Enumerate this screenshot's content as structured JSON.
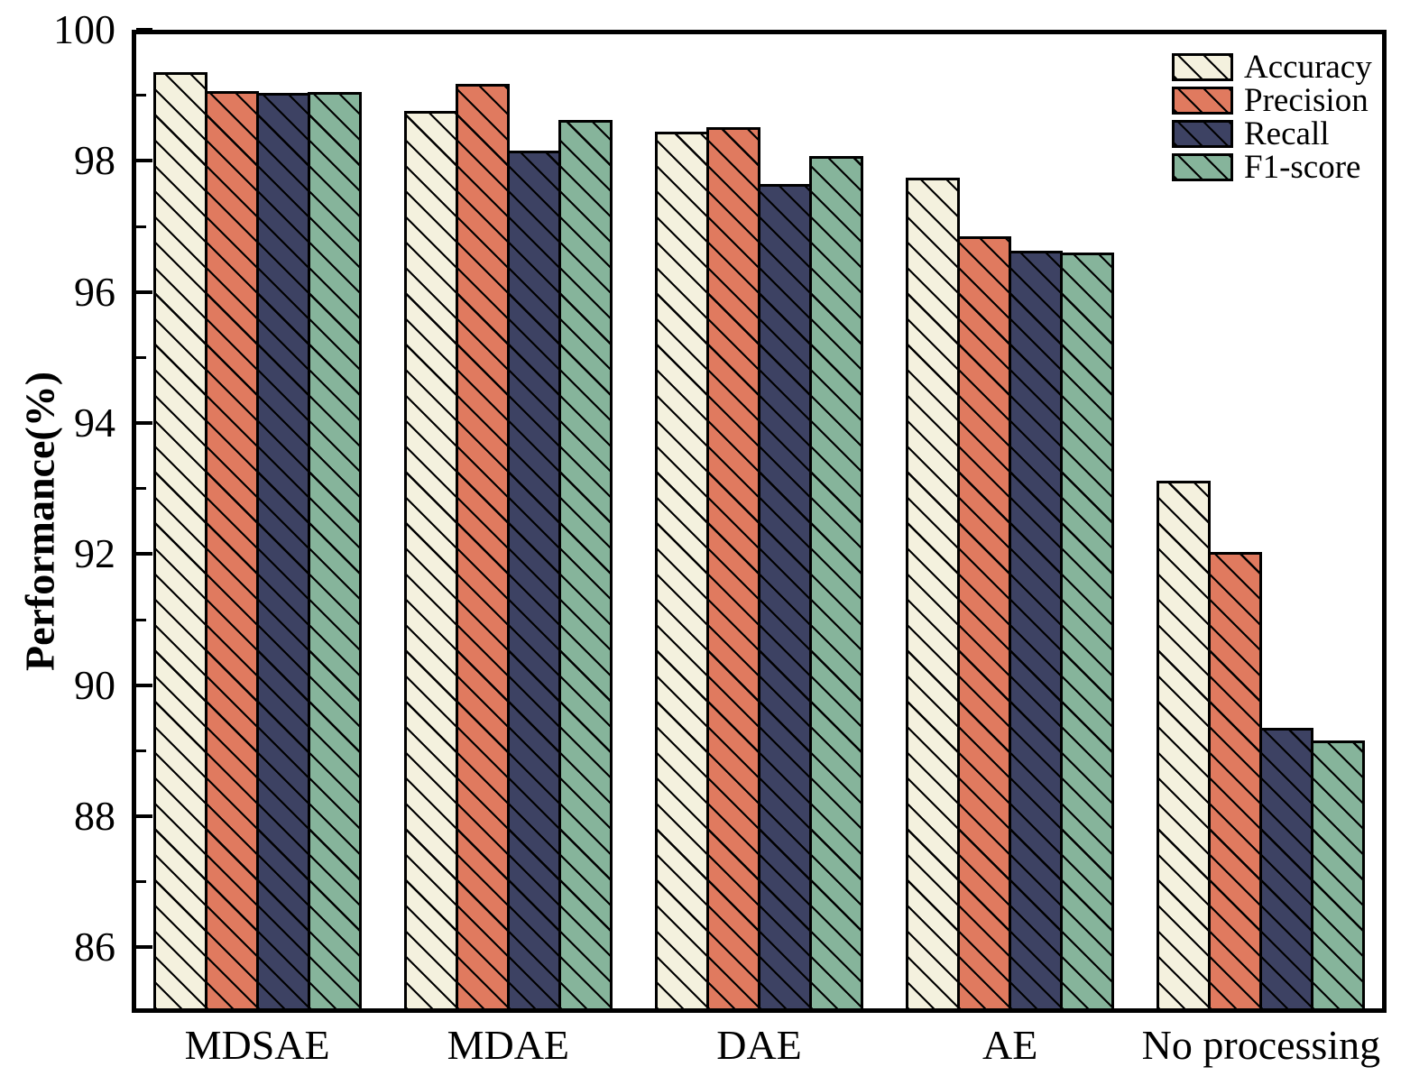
{
  "figure": {
    "background": "#ffffff"
  },
  "chart_data": {
    "type": "bar",
    "title": "",
    "xlabel": "",
    "ylabel": "Performance(%)",
    "categories": [
      "MDSAE",
      "MDAE",
      "DAE",
      "AE",
      "No processing"
    ],
    "series": [
      {
        "name": "Accuracy",
        "color": "#f4f1de",
        "values": [
          99.35,
          98.76,
          98.45,
          97.75,
          93.12
        ]
      },
      {
        "name": "Precision",
        "color": "#e07a5f",
        "values": [
          99.06,
          99.17,
          98.51,
          96.85,
          92.03
        ]
      },
      {
        "name": "Recall",
        "color": "#3d4263",
        "values": [
          99.04,
          98.15,
          97.65,
          96.63,
          89.35
        ]
      },
      {
        "name": "F1-score",
        "color": "#86b49b",
        "values": [
          99.05,
          98.62,
          98.07,
          96.6,
          89.15
        ]
      }
    ],
    "ylim": [
      85,
      100
    ],
    "yticks_major": [
      86,
      88,
      90,
      92,
      94,
      96,
      98,
      100
    ],
    "yticks_minor": [
      87,
      89,
      91,
      93,
      95,
      97,
      99
    ],
    "tick_direction": "in",
    "grid": false,
    "hatch": "\\",
    "bar_edge_color": "#000000",
    "frame_color": "#000000",
    "legend": {
      "position": "upper-right",
      "frame": false
    }
  }
}
